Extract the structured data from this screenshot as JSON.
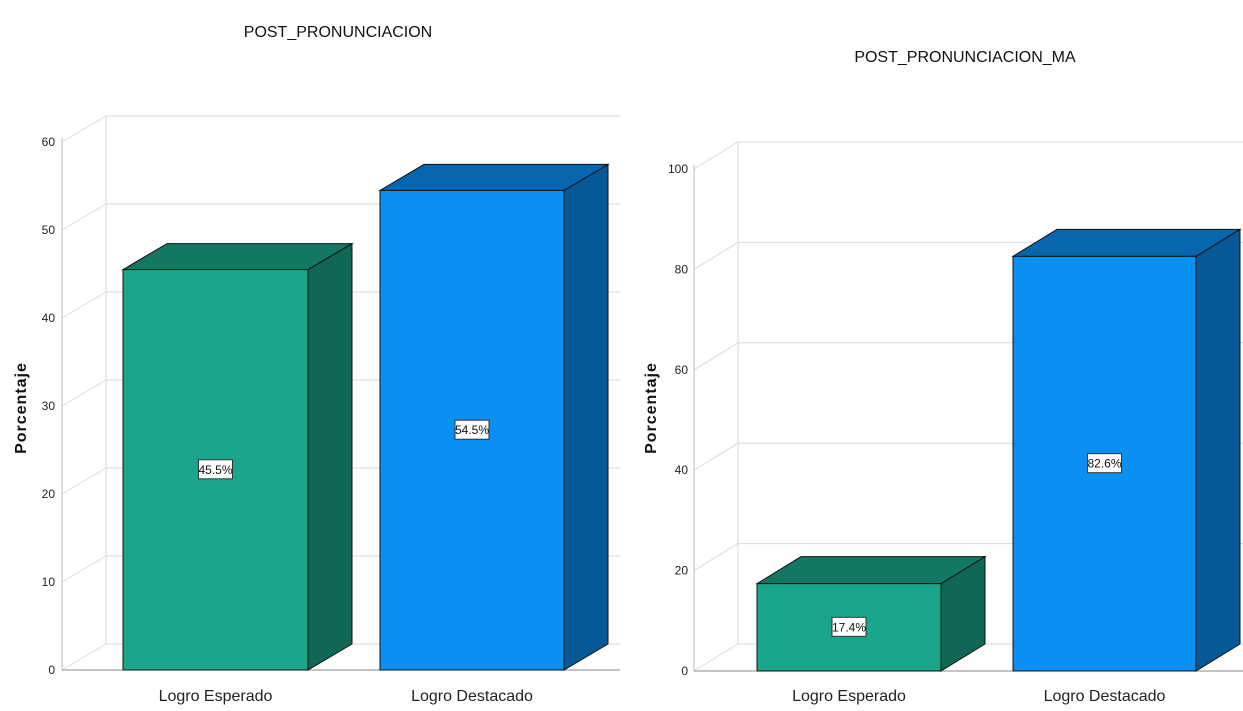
{
  "chart_data": [
    {
      "type": "bar",
      "title": "POST_PRONUNCIACION",
      "ylabel": "Porcentaje",
      "xlabel": "",
      "categories": [
        "Logro Esperado",
        "Logro Destacado"
      ],
      "values": [
        45.5,
        54.5
      ],
      "value_labels": [
        "45.5%",
        "54.5%"
      ],
      "ylim": [
        0,
        60
      ],
      "yticks": [
        0,
        10,
        20,
        30,
        40,
        50,
        60
      ],
      "ytick_labels": [
        "0",
        "10",
        "20",
        "30",
        "40",
        "50",
        "60"
      ],
      "bar_colors": [
        "#1aa68a",
        "#0a8ff2"
      ],
      "grid": true,
      "style": "3d-bar"
    },
    {
      "type": "bar",
      "title": "POST_PRONUNCIACION_MA",
      "ylabel": "Porcentaje",
      "xlabel": "",
      "categories": [
        "Logro Esperado",
        "Logro Destacado"
      ],
      "values": [
        17.4,
        82.6
      ],
      "value_labels": [
        "17.4%",
        "82.6%"
      ],
      "ylim": [
        0,
        100
      ],
      "yticks": [
        0,
        20,
        40,
        60,
        80,
        100
      ],
      "ytick_labels": [
        "0",
        "20",
        "40",
        "60",
        "80",
        "100"
      ],
      "bar_colors": [
        "#1aa68a",
        "#0a8ff2"
      ],
      "grid": true,
      "style": "3d-bar"
    }
  ]
}
